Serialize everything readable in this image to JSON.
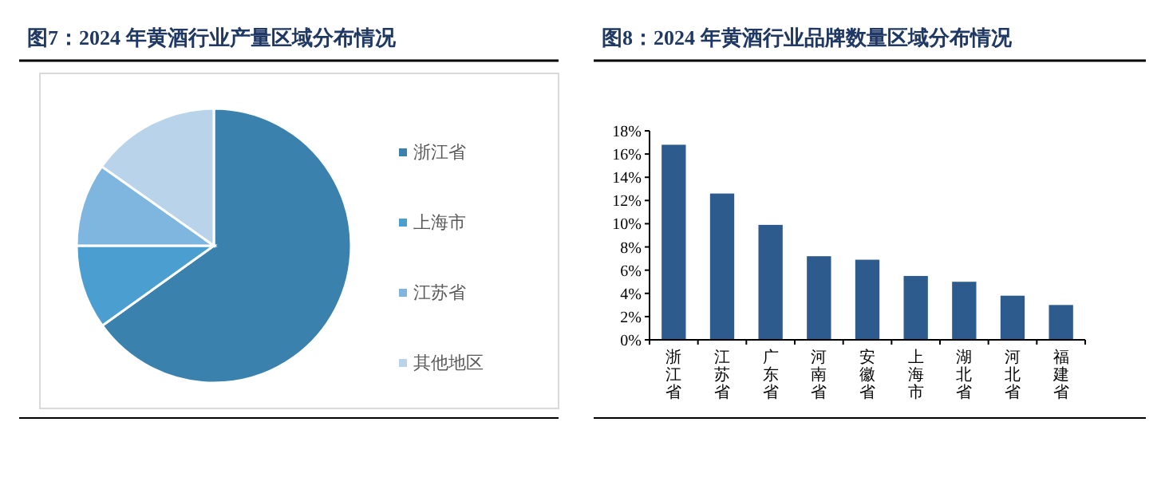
{
  "chart_data": [
    {
      "type": "pie",
      "title": "图7：2024 年黄酒行业产量区域分布情况",
      "categories": [
        "浙江省",
        "上海市",
        "江苏省",
        "其他地区"
      ],
      "values": [
        65.1,
        9.9,
        9.8,
        15.2
      ],
      "colors": [
        "#3a82ad",
        "#4a9fd0",
        "#7fb6e0",
        "#b9d4ea"
      ],
      "legend": "right"
    },
    {
      "type": "bar",
      "title": "图8：2024 年黄酒行业品牌数量区域分布情况",
      "categories": [
        "浙江省",
        "江苏省",
        "广东省",
        "河南省",
        "安徽省",
        "上海市",
        "湖北省",
        "河北省",
        "福建省"
      ],
      "values": [
        16.8,
        12.6,
        9.9,
        7.2,
        6.9,
        5.5,
        5.0,
        3.8,
        3.0
      ],
      "color": "#2e5b8e",
      "ylim": [
        0,
        18
      ],
      "yticks": [
        {
          "value": 0,
          "label": "0%"
        },
        {
          "value": 2,
          "label": "2%"
        },
        {
          "value": 4,
          "label": "4%"
        },
        {
          "value": 6,
          "label": "6%"
        },
        {
          "value": 8,
          "label": "8%"
        },
        {
          "value": 10,
          "label": "10%"
        },
        {
          "value": 12,
          "label": "12%"
        },
        {
          "value": 14,
          "label": "14%"
        },
        {
          "value": 16,
          "label": "16%"
        },
        {
          "value": 18,
          "label": "18%"
        }
      ],
      "grid": false
    }
  ]
}
